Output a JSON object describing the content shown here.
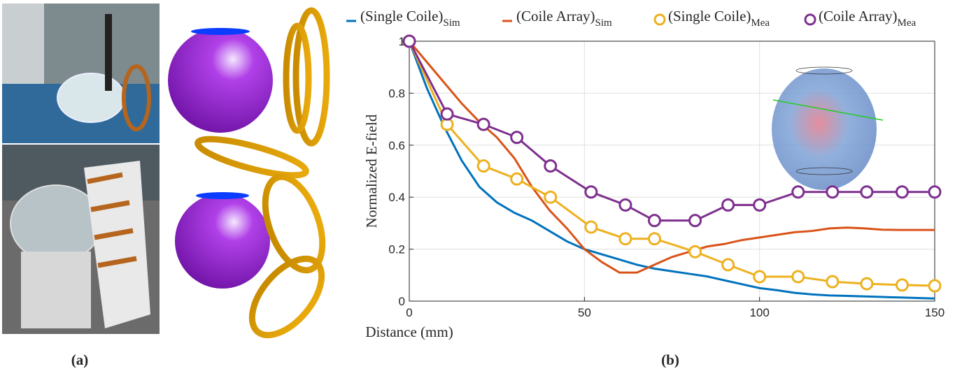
{
  "chart_data": {
    "type": "line",
    "xlabel": "Distance (mm)",
    "ylabel": "Normalized E-field",
    "xlim": [
      0,
      150
    ],
    "xticks": [
      0,
      50,
      100,
      150
    ],
    "ylim": [
      0,
      1
    ],
    "yticks": [
      0,
      0.2,
      0.4,
      0.6,
      0.8,
      1
    ],
    "grid": true,
    "legend": "top",
    "series": [
      {
        "name": "(Single Coile)",
        "subscript": "Sim",
        "color": "#0072bd",
        "x": [
          0,
          5,
          10,
          15,
          20,
          25,
          30,
          35,
          40,
          45,
          50,
          55,
          60,
          65,
          70,
          75,
          80,
          85,
          90,
          95,
          100,
          105,
          110,
          115,
          120,
          125,
          130,
          135,
          140,
          145,
          150
        ],
        "values": [
          1,
          0.82,
          0.67,
          0.54,
          0.44,
          0.38,
          0.34,
          0.31,
          0.27,
          0.23,
          0.2,
          0.18,
          0.16,
          0.14,
          0.125,
          0.115,
          0.105,
          0.095,
          0.08,
          0.065,
          0.05,
          0.042,
          0.032,
          0.026,
          0.022,
          0.02,
          0.018,
          0.016,
          0.014,
          0.012,
          0.01
        ]
      },
      {
        "name": "(Coile Array)",
        "subscript": "Sim",
        "color": "#d95319",
        "x": [
          0,
          5,
          10,
          15,
          20,
          25,
          30,
          35,
          40,
          45,
          50,
          55,
          60,
          65,
          70,
          75,
          80,
          85,
          90,
          95,
          100,
          105,
          110,
          115,
          120,
          125,
          130,
          135,
          140,
          145,
          150
        ],
        "values": [
          1,
          0.92,
          0.84,
          0.76,
          0.69,
          0.63,
          0.55,
          0.44,
          0.35,
          0.28,
          0.2,
          0.15,
          0.11,
          0.11,
          0.14,
          0.17,
          0.19,
          0.21,
          0.22,
          0.235,
          0.245,
          0.255,
          0.265,
          0.27,
          0.28,
          0.283,
          0.28,
          0.275,
          0.274,
          0.274,
          0.274
        ]
      },
      {
        "name": "(Single Coile)",
        "subscript": "Mea",
        "color": "#edb120",
        "marker": "circle",
        "x": [
          0,
          10.8,
          21.2,
          30.7,
          40.3,
          51.9,
          61.7,
          70,
          81.6,
          91,
          100,
          111,
          120.8,
          130.6,
          140.7,
          150
        ],
        "values": [
          1,
          0.68,
          0.52,
          0.47,
          0.4,
          0.285,
          0.24,
          0.24,
          0.19,
          0.14,
          0.094,
          0.094,
          0.075,
          0.067,
          0.062,
          0.059
        ]
      },
      {
        "name": "(Coile Array)",
        "subscript": "Mea",
        "color": "#7e2f8e",
        "marker": "circle",
        "x": [
          0,
          10.8,
          21.2,
          30.7,
          40.3,
          51.9,
          61.7,
          70,
          81.6,
          91,
          100,
          111,
          120.8,
          130.6,
          140.7,
          150
        ],
        "values": [
          1,
          0.72,
          0.68,
          0.63,
          0.52,
          0.42,
          0.37,
          0.31,
          0.31,
          0.37,
          0.37,
          0.42,
          0.42,
          0.42,
          0.42,
          0.42
        ]
      }
    ]
  },
  "panel_labels": [
    "(a)",
    "(b)"
  ]
}
